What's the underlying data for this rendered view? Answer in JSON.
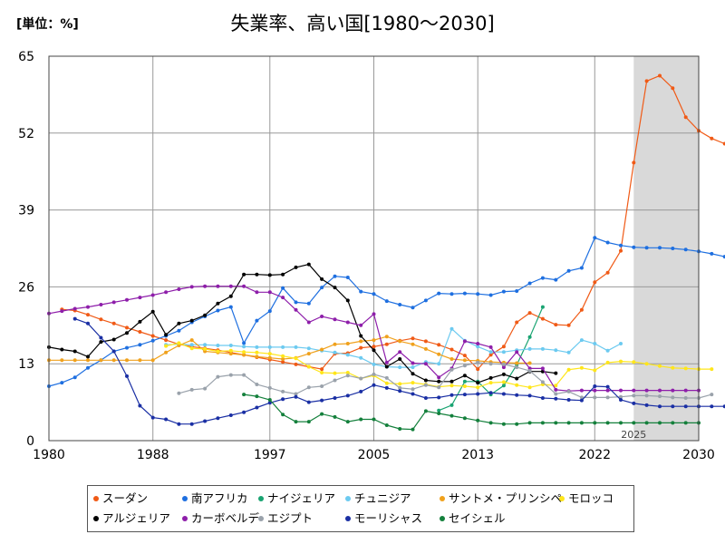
{
  "chart_data": {
    "type": "line",
    "title": "失業率、高い国[1980～2030]",
    "unit_label": "[単位：%]",
    "xlim": [
      1980,
      2030
    ],
    "ylim": [
      0,
      65
    ],
    "x_ticks": [
      "1980",
      "1988",
      "1997",
      "2005",
      "2013",
      "2022",
      "2030"
    ],
    "y_ticks": [
      "0",
      "13",
      "26",
      "39",
      "52",
      "65"
    ],
    "forecast_from": 2025,
    "forecast_label": "2025",
    "grid": true,
    "legend_position": "bottom",
    "series": [
      {
        "name": "スーダン",
        "color": "#f05a16",
        "start": 1981,
        "values": [
          22.2,
          22.0,
          21.3,
          20.5,
          19.8,
          19.1,
          18.4,
          17.7,
          17.0,
          16.3,
          15.9,
          15.6,
          15.3,
          14.9,
          14.5,
          14.1,
          13.7,
          13.3,
          12.9,
          12.5,
          12.1,
          14.7,
          14.8,
          15.7,
          15.9,
          16.3,
          16.9,
          17.3,
          16.8,
          16.2,
          15.4,
          14.4,
          12.1,
          14.5,
          15.9,
          20.0,
          21.6,
          20.6,
          19.6,
          19.5,
          22.1,
          26.8,
          28.4,
          32.1,
          47.0,
          60.8,
          61.7,
          59.6,
          54.7,
          52.4,
          51.1,
          50.2
        ]
      },
      {
        "name": "南アフリカ",
        "color": "#1e6fe0",
        "start": 1980,
        "values": [
          9.2,
          9.8,
          10.7,
          12.3,
          13.6,
          15.1,
          15.7,
          16.2,
          16.9,
          17.7,
          18.6,
          20.0,
          21.0,
          22.0,
          22.6,
          16.5,
          20.3,
          21.9,
          25.8,
          23.4,
          23.2,
          25.9,
          27.8,
          27.6,
          25.2,
          24.8,
          23.6,
          23.0,
          22.5,
          23.7,
          24.9,
          24.8,
          24.9,
          24.8,
          24.6,
          25.2,
          25.3,
          26.6,
          27.5,
          27.2,
          28.7,
          29.2,
          34.3,
          33.5,
          33.0,
          32.7,
          32.6,
          32.6,
          32.5,
          32.3,
          32.0,
          31.6,
          31.1
        ]
      },
      {
        "name": "ナイジェリア",
        "color": "#1aa472",
        "start": 2010,
        "values": [
          5.1,
          6.0,
          10.0,
          10.0,
          7.8,
          9.3,
          12.8,
          17.5,
          22.6
        ]
      },
      {
        "name": "チュニジア",
        "color": "#6ccaf0",
        "start": 1989,
        "values": [
          16.2,
          16.3,
          16.2,
          16.2,
          16.1,
          16.1,
          15.9,
          15.8,
          15.8,
          15.8,
          15.8,
          15.6,
          15.2,
          14.9,
          14.5,
          14.0,
          12.9,
          12.5,
          12.4,
          12.4,
          13.3,
          13.0,
          18.9,
          16.9,
          15.9,
          15.0,
          15.0,
          15.3,
          15.5,
          15.5,
          15.3,
          14.9,
          17.0,
          16.4,
          15.2,
          16.4
        ]
      },
      {
        "name": "サントメ・プリンシペ",
        "color": "#f0a11c",
        "start": 1980,
        "values": [
          13.6,
          13.6,
          13.6,
          13.6,
          13.6,
          13.6,
          13.6,
          13.6,
          13.6,
          14.9,
          16.1,
          17.0,
          15.1,
          14.9,
          14.7,
          14.5,
          14.2,
          14.0,
          13.8,
          14.0,
          14.7,
          15.4,
          16.3,
          16.4,
          16.8,
          17.0,
          17.6,
          16.8,
          16.3,
          15.5,
          14.6,
          13.8,
          13.6,
          13.5,
          13.3,
          13.2,
          13.1,
          13.1
        ]
      },
      {
        "name": "モロッコ",
        "color": "#ffe61a",
        "start": 1989,
        "values": [
          16.0,
          16.5,
          15.6,
          15.5,
          15.1,
          15.2,
          15.0,
          14.9,
          14.7,
          14.3,
          13.9,
          12.5,
          11.5,
          11.4,
          11.5,
          10.5,
          11.0,
          9.7,
          9.6,
          9.8,
          9.5,
          9.1,
          9.3,
          9.2,
          9.0,
          9.8,
          9.9,
          9.4,
          9.0,
          9.5,
          9.3,
          12.0,
          12.3,
          11.9,
          13.2,
          13.4,
          13.3,
          13.0,
          12.6,
          12.3,
          12.2,
          12.1,
          12.1
        ]
      },
      {
        "name": "アルジェリア",
        "color": "#000000",
        "start": 1980,
        "values": [
          15.8,
          15.4,
          15.1,
          14.2,
          16.7,
          17.1,
          18.2,
          20.1,
          21.8,
          17.9,
          19.8,
          20.3,
          21.2,
          23.2,
          24.4,
          28.1,
          28.1,
          28.0,
          28.1,
          29.3,
          29.8,
          27.3,
          25.9,
          23.7,
          17.7,
          15.3,
          12.5,
          13.8,
          11.3,
          10.2,
          10.0,
          10.0,
          11.0,
          9.8,
          10.6,
          11.2,
          10.5,
          11.7,
          11.7,
          11.4
        ]
      },
      {
        "name": "カーボベルデ",
        "color": "#8e1eaa",
        "start": 1980,
        "values": [
          21.5,
          21.9,
          22.3,
          22.6,
          23.0,
          23.4,
          23.8,
          24.2,
          24.6,
          25.1,
          25.6,
          26.0,
          26.1,
          26.1,
          26.1,
          26.1,
          25.1,
          25.1,
          24.2,
          22.1,
          20.0,
          21.0,
          20.5,
          20.0,
          19.5,
          21.4,
          13.2,
          15.0,
          13.1,
          13.0,
          10.7,
          12.2,
          16.8,
          16.4,
          15.8,
          12.4,
          15.0,
          12.2,
          12.2,
          8.6,
          8.4,
          8.5,
          8.5,
          8.5,
          8.5,
          8.5,
          8.5,
          8.5,
          8.5,
          8.5,
          8.5
        ]
      },
      {
        "name": "エジプト",
        "color": "#9aa2ab",
        "start": 1990,
        "values": [
          8.0,
          8.6,
          8.8,
          10.8,
          11.1,
          11.1,
          9.5,
          8.9,
          8.3,
          7.9,
          9.0,
          9.2,
          10.2,
          11.0,
          10.5,
          11.2,
          10.6,
          8.9,
          8.7,
          9.4,
          9.0,
          12.0,
          12.7,
          13.2,
          13.0,
          12.9,
          12.4,
          11.8,
          9.9,
          7.9,
          8.3,
          7.3,
          7.3,
          7.3,
          7.4,
          7.6,
          7.6,
          7.5,
          7.3,
          7.2,
          7.2,
          7.8
        ]
      },
      {
        "name": "モーリシャス",
        "color": "#1a2fa4",
        "start": 1982,
        "values": [
          20.6,
          19.8,
          17.4,
          15.1,
          10.9,
          5.9,
          3.9,
          3.6,
          2.8,
          2.8,
          3.3,
          3.8,
          4.3,
          4.8,
          5.6,
          6.4,
          7.0,
          7.4,
          6.5,
          6.8,
          7.2,
          7.6,
          8.3,
          9.4,
          8.9,
          8.4,
          7.9,
          7.2,
          7.3,
          7.7,
          7.8,
          7.9,
          8.1,
          7.9,
          7.7,
          7.6,
          7.2,
          7.1,
          6.9,
          6.8,
          9.2,
          9.1,
          6.9,
          6.3,
          6.0,
          5.8,
          5.8,
          5.8,
          5.8,
          5.8,
          5.8,
          5.8,
          5.8
        ]
      },
      {
        "name": "セイシェル",
        "color": "#14803c",
        "start": 1995,
        "values": [
          7.8,
          7.5,
          6.9,
          4.4,
          3.2,
          3.2,
          4.5,
          4.0,
          3.2,
          3.6,
          3.6,
          2.6,
          2.0,
          1.9,
          5.0,
          4.6,
          4.2,
          3.8,
          3.4,
          3.0,
          2.8,
          2.8,
          3.0,
          3.0,
          3.0,
          3.0,
          3.0,
          3.0,
          3.0,
          3.0,
          3.0,
          3.0,
          3.0,
          3.0,
          3.0,
          3.0
        ]
      }
    ]
  }
}
